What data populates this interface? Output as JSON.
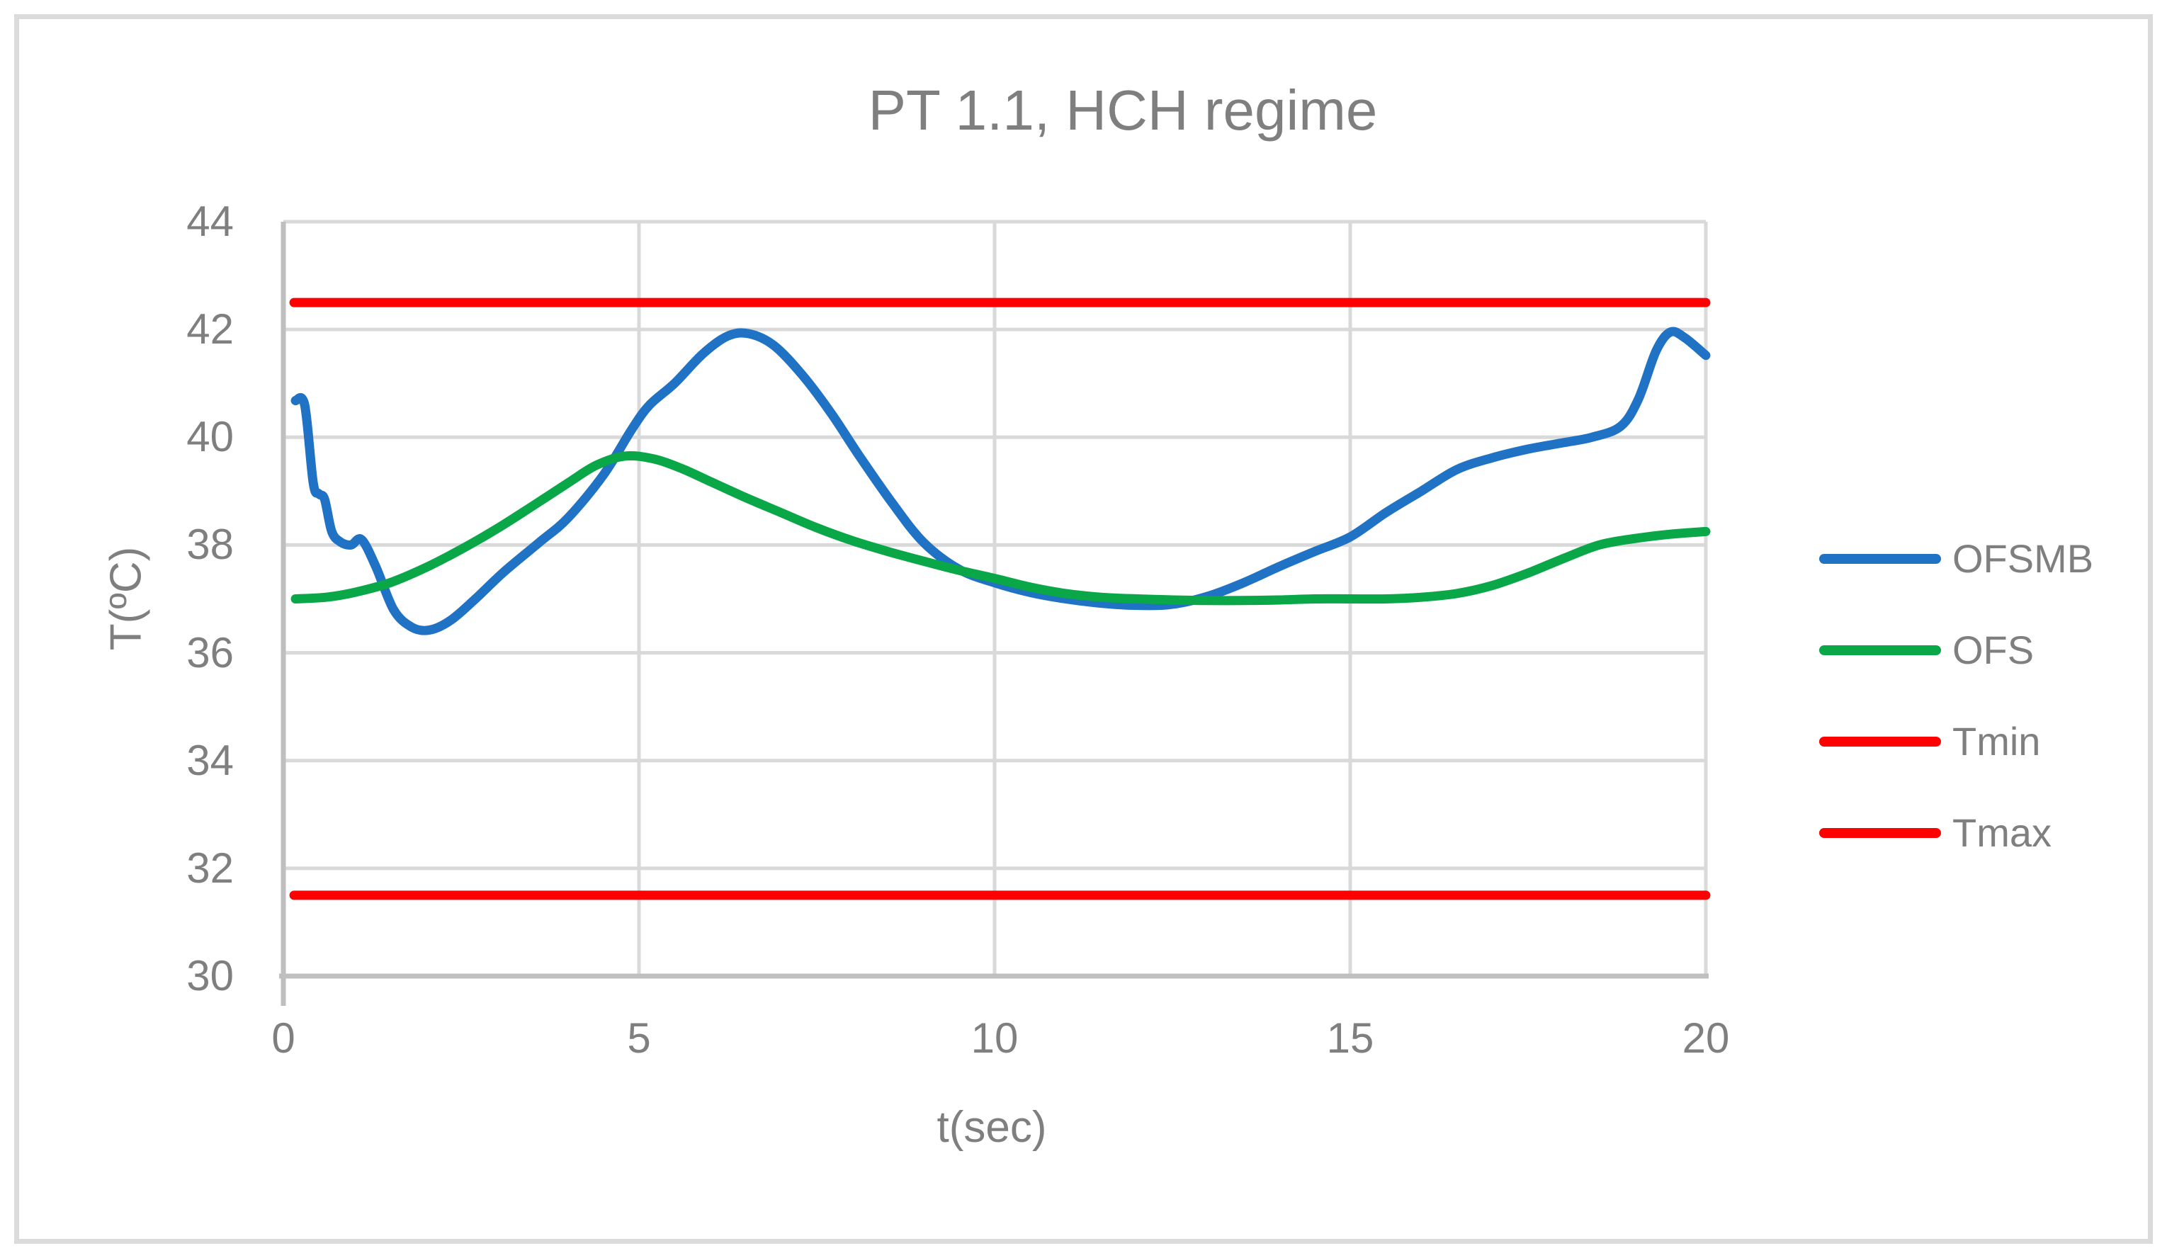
{
  "chart_data": {
    "type": "line",
    "title": "PT 1.1, HCH regime",
    "xlabel": "t(sec)",
    "ylabel": "T(ºC)",
    "axes": {
      "xlim": [
        0,
        20
      ],
      "ylim": [
        30,
        44
      ],
      "x_ticks": [
        0,
        5,
        10,
        15,
        20
      ],
      "y_ticks": [
        30,
        32,
        34,
        36,
        38,
        40,
        42,
        44
      ],
      "grid": true
    },
    "colors": {
      "gridline": "#D9D9D9",
      "axis_line": "#BFBFBF",
      "text": "#7F7F7F",
      "ofsmb_blue": "#2072C4",
      "ofs_green": "#0AA748",
      "limit_red": "#FF0000"
    },
    "legend": [
      {
        "label": "OFSMB",
        "color": "#2072C4"
      },
      {
        "label": "OFS",
        "color": "#0AA748"
      },
      {
        "label": "Tmin",
        "color": "#FF0000"
      },
      {
        "label": "Tmax",
        "color": "#FF0000"
      }
    ],
    "series": [
      {
        "name": "OFSMB",
        "color": "#2072C4",
        "smooth": true,
        "layer": 2,
        "points": [
          [
            0.17,
            40.68
          ],
          [
            0.3,
            40.6
          ],
          [
            0.42,
            39.15
          ],
          [
            0.5,
            38.95
          ],
          [
            0.58,
            38.85
          ],
          [
            0.68,
            38.25
          ],
          [
            0.8,
            38.06
          ],
          [
            0.95,
            38.0
          ],
          [
            1.1,
            38.1
          ],
          [
            1.3,
            37.6
          ],
          [
            1.55,
            36.8
          ],
          [
            1.8,
            36.48
          ],
          [
            2.05,
            36.42
          ],
          [
            2.35,
            36.6
          ],
          [
            2.7,
            37.0
          ],
          [
            3.1,
            37.5
          ],
          [
            3.6,
            38.05
          ],
          [
            4.0,
            38.5
          ],
          [
            4.5,
            39.3
          ],
          [
            4.9,
            40.15
          ],
          [
            5.15,
            40.6
          ],
          [
            5.5,
            41.0
          ],
          [
            5.9,
            41.55
          ],
          [
            6.25,
            41.88
          ],
          [
            6.55,
            41.92
          ],
          [
            6.9,
            41.7
          ],
          [
            7.3,
            41.15
          ],
          [
            7.7,
            40.45
          ],
          [
            8.1,
            39.65
          ],
          [
            8.55,
            38.8
          ],
          [
            9.0,
            38.05
          ],
          [
            9.5,
            37.55
          ],
          [
            10.0,
            37.3
          ],
          [
            10.5,
            37.12
          ],
          [
            11.0,
            37.0
          ],
          [
            11.5,
            36.92
          ],
          [
            12.0,
            36.88
          ],
          [
            12.5,
            36.9
          ],
          [
            13.0,
            37.05
          ],
          [
            13.5,
            37.3
          ],
          [
            14.0,
            37.6
          ],
          [
            14.5,
            37.88
          ],
          [
            15.0,
            38.15
          ],
          [
            15.5,
            38.6
          ],
          [
            16.0,
            39.0
          ],
          [
            16.5,
            39.4
          ],
          [
            17.0,
            39.62
          ],
          [
            17.5,
            39.78
          ],
          [
            18.0,
            39.9
          ],
          [
            18.4,
            40.0
          ],
          [
            18.8,
            40.2
          ],
          [
            19.05,
            40.7
          ],
          [
            19.3,
            41.6
          ],
          [
            19.5,
            41.95
          ],
          [
            19.7,
            41.85
          ],
          [
            20.0,
            41.52
          ]
        ]
      },
      {
        "name": "OFS",
        "color": "#0AA748",
        "smooth": true,
        "layer": 3,
        "points": [
          [
            0.17,
            37.0
          ],
          [
            0.6,
            37.03
          ],
          [
            1.0,
            37.12
          ],
          [
            1.5,
            37.3
          ],
          [
            2.0,
            37.58
          ],
          [
            2.5,
            37.92
          ],
          [
            3.0,
            38.3
          ],
          [
            3.5,
            38.72
          ],
          [
            4.0,
            39.15
          ],
          [
            4.4,
            39.48
          ],
          [
            4.8,
            39.65
          ],
          [
            5.2,
            39.6
          ],
          [
            5.6,
            39.42
          ],
          [
            6.0,
            39.18
          ],
          [
            6.5,
            38.88
          ],
          [
            7.0,
            38.6
          ],
          [
            7.5,
            38.32
          ],
          [
            8.0,
            38.08
          ],
          [
            8.5,
            37.88
          ],
          [
            9.0,
            37.7
          ],
          [
            9.5,
            37.53
          ],
          [
            10.0,
            37.38
          ],
          [
            10.5,
            37.22
          ],
          [
            11.0,
            37.1
          ],
          [
            11.5,
            37.03
          ],
          [
            12.0,
            37.0
          ],
          [
            12.5,
            36.98
          ],
          [
            13.0,
            36.97
          ],
          [
            13.5,
            36.97
          ],
          [
            14.0,
            36.98
          ],
          [
            14.5,
            37.0
          ],
          [
            15.0,
            37.0
          ],
          [
            15.5,
            37.0
          ],
          [
            16.0,
            37.03
          ],
          [
            16.5,
            37.1
          ],
          [
            17.0,
            37.25
          ],
          [
            17.5,
            37.48
          ],
          [
            18.0,
            37.75
          ],
          [
            18.5,
            38.0
          ],
          [
            19.0,
            38.12
          ],
          [
            19.5,
            38.2
          ],
          [
            20.0,
            38.25
          ]
        ]
      },
      {
        "name": "Tmin",
        "color": "#FF0000",
        "smooth": false,
        "layer": 1,
        "value": 31.5,
        "points": [
          [
            0.15,
            31.5
          ],
          [
            20,
            31.5
          ]
        ]
      },
      {
        "name": "Tmax",
        "color": "#FF0000",
        "smooth": false,
        "layer": 1,
        "value": 42.5,
        "points": [
          [
            0.15,
            42.5
          ],
          [
            20,
            42.5
          ]
        ]
      }
    ]
  }
}
